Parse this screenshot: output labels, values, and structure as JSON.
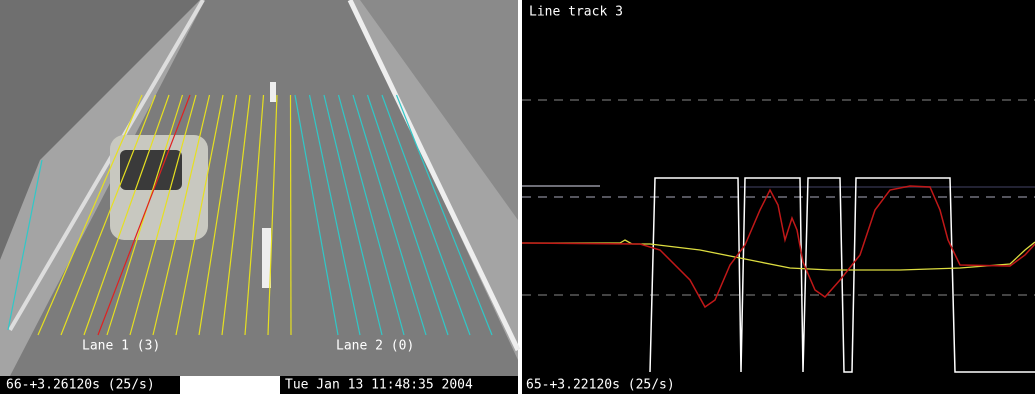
{
  "video": {
    "lane_labels": [
      "Lane 1 (3)",
      "Lane 2 (0)"
    ],
    "status": "66-+3.26120s (25/s)",
    "timestamp": "Tue Jan 13 11:48:35 2004"
  },
  "plot": {
    "title": "Line track 3",
    "status": "65-+3.22120s (25/s)"
  }
}
